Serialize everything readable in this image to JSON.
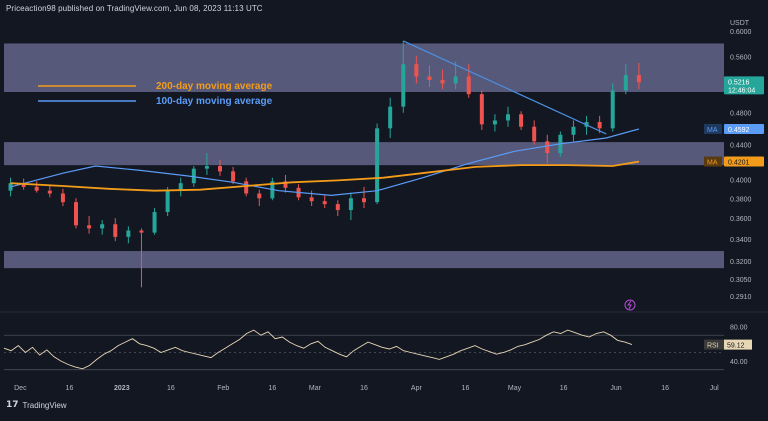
{
  "header": {
    "publisher_line": "Priceaction98 published on TradingView.com, Jun 08, 2023 11:13 UTC",
    "unit": "USDT"
  },
  "footer": {
    "brand": "TradingView",
    "logo_glyph": "17"
  },
  "legend": {
    "ma200_label": "200-day moving average",
    "ma200_color": "#f39c1a",
    "ma100_label": "100-day moving average",
    "ma100_color": "#5b9cf6"
  },
  "price_tags": {
    "current_price": "0.5216",
    "countdown": "12:46:04",
    "ma100_tag_label": "MA",
    "ma100_tag_value": "0.4592",
    "ma200_tag_label": "MA",
    "ma200_tag_value": "0.4201",
    "rsi_tag_label": "RSI",
    "rsi_tag_value": "59.12"
  },
  "colors": {
    "background": "#131722",
    "up": "#26a69a",
    "down": "#ef5350",
    "zone": "#8f8fc4",
    "trendline": "#4a90e2",
    "rsi_line": "#e7d7b5",
    "current_price_tag": "#26a69a"
  },
  "chart_data": [
    {
      "type": "candlestick",
      "title": "",
      "y_ticks": [
        "0.6000",
        "0.5600",
        "0.5200",
        "0.4800",
        "0.4400",
        "0.4000",
        "0.3800",
        "0.3600",
        "0.3400",
        "0.3200",
        "0.3050",
        "0.2910"
      ],
      "x_ticks": [
        "Dec",
        "16",
        "2023",
        "16",
        "Feb",
        "16",
        "Mar",
        "16",
        "Apr",
        "16",
        "May",
        "16",
        "Jun",
        "16",
        "Jul"
      ],
      "ylim": [
        0.291,
        0.615
      ],
      "y_scale": "log",
      "zones": [
        {
          "low": 0.508,
          "high": 0.58
        },
        {
          "low": 0.416,
          "high": 0.443
        },
        {
          "low": 0.314,
          "high": 0.329
        }
      ],
      "trendline": {
        "from": {
          "x": "2023-03-28",
          "y": 0.584
        },
        "to": {
          "x": "2023-05-29",
          "y": 0.453
        }
      },
      "ohlc_approx": [
        [
          "2022-11-28",
          0.388,
          0.402,
          0.382,
          0.396
        ],
        [
          "2022-12-02",
          0.396,
          0.401,
          0.389,
          0.392
        ],
        [
          "2022-12-06",
          0.392,
          0.398,
          0.386,
          0.388
        ],
        [
          "2022-12-10",
          0.388,
          0.393,
          0.381,
          0.385
        ],
        [
          "2022-12-14",
          0.385,
          0.39,
          0.372,
          0.376
        ],
        [
          "2022-12-18",
          0.376,
          0.38,
          0.35,
          0.353
        ],
        [
          "2022-12-22",
          0.353,
          0.362,
          0.345,
          0.35
        ],
        [
          "2022-12-26",
          0.35,
          0.358,
          0.344,
          0.354
        ],
        [
          "2022-12-30",
          0.354,
          0.36,
          0.338,
          0.342
        ],
        [
          "2023-01-03",
          0.342,
          0.352,
          0.336,
          0.348
        ],
        [
          "2023-01-07",
          0.348,
          0.35,
          0.298,
          0.346
        ],
        [
          "2023-01-11",
          0.346,
          0.37,
          0.344,
          0.366
        ],
        [
          "2023-01-15",
          0.366,
          0.392,
          0.362,
          0.388
        ],
        [
          "2023-01-19",
          0.388,
          0.402,
          0.382,
          0.396
        ],
        [
          "2023-01-23",
          0.396,
          0.415,
          0.392,
          0.412
        ],
        [
          "2023-01-27",
          0.412,
          0.43,
          0.405,
          0.415
        ],
        [
          "2023-01-31",
          0.415,
          0.422,
          0.404,
          0.409
        ],
        [
          "2023-02-04",
          0.409,
          0.414,
          0.395,
          0.398
        ],
        [
          "2023-02-08",
          0.398,
          0.402,
          0.382,
          0.385
        ],
        [
          "2023-02-12",
          0.385,
          0.389,
          0.372,
          0.38
        ],
        [
          "2023-02-16",
          0.38,
          0.402,
          0.378,
          0.398
        ],
        [
          "2023-02-20",
          0.398,
          0.405,
          0.386,
          0.391
        ],
        [
          "2023-02-24",
          0.391,
          0.395,
          0.378,
          0.381
        ],
        [
          "2023-02-28",
          0.381,
          0.388,
          0.372,
          0.377
        ],
        [
          "2023-03-04",
          0.377,
          0.383,
          0.37,
          0.374
        ],
        [
          "2023-03-08",
          0.374,
          0.378,
          0.362,
          0.368
        ],
        [
          "2023-03-12",
          0.368,
          0.386,
          0.358,
          0.38
        ],
        [
          "2023-03-16",
          0.38,
          0.392,
          0.37,
          0.376
        ],
        [
          "2023-03-20",
          0.376,
          0.466,
          0.374,
          0.46
        ],
        [
          "2023-03-24",
          0.46,
          0.5,
          0.448,
          0.488
        ],
        [
          "2023-03-28",
          0.488,
          0.584,
          0.48,
          0.548
        ],
        [
          "2023-04-01",
          0.548,
          0.56,
          0.52,
          0.53
        ],
        [
          "2023-04-05",
          0.53,
          0.546,
          0.515,
          0.525
        ],
        [
          "2023-04-09",
          0.525,
          0.54,
          0.512,
          0.52
        ],
        [
          "2023-04-13",
          0.52,
          0.552,
          0.512,
          0.53
        ],
        [
          "2023-04-17",
          0.53,
          0.548,
          0.5,
          0.505
        ],
        [
          "2023-04-21",
          0.505,
          0.51,
          0.458,
          0.465
        ],
        [
          "2023-04-25",
          0.465,
          0.478,
          0.456,
          0.47
        ],
        [
          "2023-04-29",
          0.47,
          0.488,
          0.462,
          0.478
        ],
        [
          "2023-05-03",
          0.478,
          0.482,
          0.458,
          0.462
        ],
        [
          "2023-05-07",
          0.462,
          0.47,
          0.44,
          0.444
        ],
        [
          "2023-05-11",
          0.444,
          0.452,
          0.418,
          0.43
        ],
        [
          "2023-05-15",
          0.43,
          0.456,
          0.426,
          0.452
        ],
        [
          "2023-05-19",
          0.452,
          0.47,
          0.444,
          0.462
        ],
        [
          "2023-05-23",
          0.462,
          0.476,
          0.452,
          0.468
        ],
        [
          "2023-05-27",
          0.468,
          0.476,
          0.454,
          0.46
        ],
        [
          "2023-05-31",
          0.46,
          0.52,
          0.456,
          0.51
        ],
        [
          "2023-06-04",
          0.51,
          0.548,
          0.505,
          0.532
        ],
        [
          "2023-06-08",
          0.532,
          0.55,
          0.512,
          0.5216
        ]
      ],
      "ma100": [
        [
          "2022-11-28",
          0.392
        ],
        [
          "2022-12-14",
          0.407
        ],
        [
          "2022-12-24",
          0.415
        ],
        [
          "2023-01-07",
          0.41
        ],
        [
          "2023-01-21",
          0.404
        ],
        [
          "2023-02-04",
          0.397
        ],
        [
          "2023-02-18",
          0.388
        ],
        [
          "2023-03-06",
          0.383
        ],
        [
          "2023-03-20",
          0.388
        ],
        [
          "2023-04-03",
          0.402
        ],
        [
          "2023-04-17",
          0.418
        ],
        [
          "2023-05-01",
          0.432
        ],
        [
          "2023-05-15",
          0.441
        ],
        [
          "2023-05-29",
          0.448
        ],
        [
          "2023-06-08",
          0.4592
        ]
      ],
      "ma200": [
        [
          "2022-11-28",
          0.396
        ],
        [
          "2022-12-14",
          0.393
        ],
        [
          "2022-12-28",
          0.39
        ],
        [
          "2023-01-11",
          0.388
        ],
        [
          "2023-01-25",
          0.389
        ],
        [
          "2023-02-08",
          0.393
        ],
        [
          "2023-02-22",
          0.397
        ],
        [
          "2023-03-08",
          0.399
        ],
        [
          "2023-03-22",
          0.402
        ],
        [
          "2023-04-05",
          0.408
        ],
        [
          "2023-04-19",
          0.414
        ],
        [
          "2023-05-03",
          0.416
        ],
        [
          "2023-05-17",
          0.416
        ],
        [
          "2023-05-31",
          0.415
        ],
        [
          "2023-06-08",
          0.4201
        ]
      ]
    },
    {
      "type": "line",
      "name": "RSI",
      "y_ticks": [
        "80.00",
        "40.00"
      ],
      "ylim": [
        25,
        90
      ],
      "levels": [
        70,
        50,
        30
      ],
      "values": [
        55,
        52,
        58,
        50,
        56,
        47,
        53,
        45,
        40,
        36,
        33,
        31,
        35,
        42,
        48,
        52,
        58,
        62,
        66,
        60,
        58,
        55,
        50,
        53,
        56,
        52,
        50,
        48,
        46,
        44,
        50,
        55,
        60,
        65,
        72,
        76,
        70,
        74,
        66,
        68,
        62,
        58,
        55,
        60,
        63,
        56,
        52,
        48,
        45,
        52,
        57,
        62,
        59,
        56,
        54,
        57,
        52,
        50,
        48,
        46,
        44,
        42,
        45,
        48,
        52,
        55,
        58,
        54,
        51,
        48,
        50,
        53,
        57,
        59,
        62,
        65,
        70,
        74,
        72,
        76,
        73,
        70,
        68,
        72,
        74,
        70,
        64,
        62,
        59.12
      ]
    }
  ]
}
